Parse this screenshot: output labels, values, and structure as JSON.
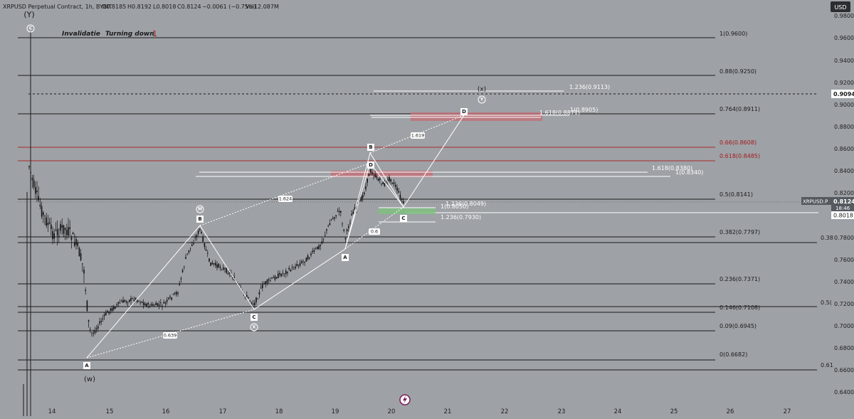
{
  "header": {
    "symbol": "XRPUSD Perpetual Contract, 1h, BYBIT",
    "open": "O0.8185",
    "high": "H0.8192",
    "low": "L0.8018",
    "close": "C0.8124",
    "change": "−0.0061 (−0.75%)",
    "volume": "Vol12.087M",
    "currency_button": "USD"
  },
  "annotations": {
    "invalidation": "Invalidatie",
    "turning_down": "Turning down",
    "turning_count": "1",
    "top_degree": "(Y)",
    "top_circle": "C",
    "w_bottom": "(w)",
    "x_top": "(x)",
    "y_circle": "Y",
    "w_circle": "W",
    "x_circle": "X"
  },
  "price_axis": {
    "ticks": [
      "0.9800",
      "0.9600",
      "0.9400",
      "0.9200",
      "0.9000",
      "0.8800",
      "0.8600",
      "0.8400",
      "0.8200",
      "0.7800",
      "0.7600",
      "0.7400",
      "0.7200",
      "0.7000",
      "0.6800",
      "0.6600",
      "0.6400"
    ],
    "current_price_label": "XRPUSD.P",
    "current_price": "0.8124",
    "countdown": "18:46",
    "low_price": "0.8018",
    "marked_level": "0.9094",
    "side_38": "0.38",
    "side_5": "0.5(",
    "side_61": "0.61"
  },
  "date_axis": [
    "14",
    "15",
    "16",
    "17",
    "18",
    "19",
    "20",
    "21",
    "22",
    "23",
    "24",
    "25",
    "26",
    "27"
  ],
  "fib_levels": [
    {
      "label": "1(0.9600)",
      "price": 0.96,
      "color": "dark"
    },
    {
      "label": "0.88(0.9250)",
      "price": 0.925,
      "color": "dark"
    },
    {
      "label": "0.764(0.8911)",
      "price": 0.8911,
      "color": "dark"
    },
    {
      "label": "0.66(0.8608)",
      "price": 0.8608,
      "color": "red"
    },
    {
      "label": "0.618(0.8485)",
      "price": 0.8485,
      "color": "red"
    },
    {
      "label": "0.5(0.8141)",
      "price": 0.8141,
      "color": "dark"
    },
    {
      "label": "0.382(0.7797)",
      "price": 0.7797,
      "color": "dark"
    },
    {
      "label": "0.236(0.7371)",
      "price": 0.7371,
      "color": "dark"
    },
    {
      "label": "0.146(0.7108)",
      "price": 0.7108,
      "color": "dark"
    },
    {
      "label": "0.09(0.6945)",
      "price": 0.6945,
      "color": "dark"
    },
    {
      "label": "0(0.6682)",
      "price": 0.6682,
      "color": "dark"
    }
  ],
  "extension_labels": [
    {
      "label": "1.236(0.9113)",
      "price": 0.9113
    },
    {
      "label": "1(0.8905)",
      "price": 0.8905
    },
    {
      "label": "1.618(0.8871)",
      "price": 0.8871
    },
    {
      "label": "1.618(0.8380)",
      "price": 0.838
    },
    {
      "label": "1(0.8340)",
      "price": 0.834
    },
    {
      "label": "1.236(0.8049)",
      "price": 0.8049
    },
    {
      "label": "1(0.8050)",
      "price": 0.805
    },
    {
      "label": "1.236(0.7930)",
      "price": 0.793
    }
  ],
  "ratio_labels": [
    "1.624",
    "0.639",
    "1.619",
    "0.6"
  ],
  "wave_points": [
    "A",
    "B",
    "C",
    "A",
    "B",
    "C",
    "D",
    "C",
    "D"
  ],
  "colors": {
    "background": "#9ea1a6",
    "candle": "#111111",
    "red_zone": "#c0737a",
    "green_zone": "#7fbf7f",
    "red_line": "#a52a2a",
    "white": "#ffffff"
  }
}
